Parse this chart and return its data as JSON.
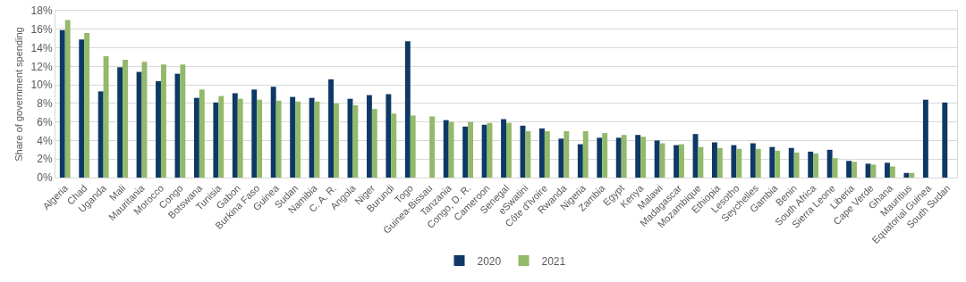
{
  "chart_data": {
    "type": "bar",
    "ylabel": "Share of government spending",
    "categories": [
      "Algeria",
      "Chad",
      "Uganda",
      "Mali",
      "Mauritania",
      "Morocco",
      "Congo",
      "Botswana",
      "Tunisia",
      "Gabon",
      "Burkina Faso",
      "Guinea",
      "Sudan",
      "Namibia",
      "C. A. R.",
      "Angola",
      "Niger",
      "Burundi",
      "Togo",
      "Guinea-Bissau",
      "Tanzania",
      "Congo, D. R.",
      "Cameroon",
      "Senegal",
      "eSwatini",
      "Côte d'Ivoire",
      "Rwanda",
      "Nigeria",
      "Zambia",
      "Egypt",
      "Kenya",
      "Malawi",
      "Madagascar",
      "Mozambique",
      "Ethiopia",
      "Lesotho",
      "Seychelles",
      "Gambia",
      "Benin",
      "South Africa",
      "Sierra Leone",
      "Liberia",
      "Cape Verde",
      "Ghana",
      "Mauritius",
      "Equatorial Guinea",
      "South Sudan"
    ],
    "series": [
      {
        "name": "2020",
        "color": "#0e3966",
        "values": [
          15.9,
          14.9,
          9.3,
          11.9,
          11.4,
          10.4,
          11.2,
          8.6,
          8.1,
          9.1,
          9.5,
          9.8,
          8.7,
          8.6,
          10.6,
          8.5,
          8.9,
          9.0,
          14.7,
          null,
          6.2,
          5.5,
          5.7,
          6.3,
          5.6,
          5.3,
          4.2,
          3.6,
          4.3,
          4.3,
          4.6,
          4.0,
          3.5,
          4.7,
          3.8,
          3.5,
          3.7,
          3.3,
          3.2,
          2.8,
          3.0,
          1.8,
          1.5,
          1.6,
          0.5,
          8.4,
          8.1
        ]
      },
      {
        "name": "2021",
        "color": "#93b96b",
        "values": [
          17.0,
          15.6,
          13.1,
          12.7,
          12.5,
          12.2,
          12.2,
          9.5,
          8.8,
          8.5,
          8.4,
          8.3,
          8.2,
          8.2,
          8.0,
          7.8,
          7.4,
          6.9,
          6.7,
          6.6,
          6.0,
          6.0,
          5.9,
          5.9,
          5.0,
          5.0,
          5.0,
          5.0,
          4.8,
          4.6,
          4.4,
          3.7,
          3.6,
          3.3,
          3.2,
          3.1,
          3.1,
          2.9,
          2.7,
          2.6,
          2.1,
          1.7,
          1.4,
          1.2,
          0.5,
          null,
          null
        ]
      }
    ],
    "ylim": [
      0,
      18
    ],
    "yticks": [
      {
        "value": 0,
        "label": "0%"
      },
      {
        "value": 2,
        "label": "2%"
      },
      {
        "value": 4,
        "label": "4%"
      },
      {
        "value": 6,
        "label": "6%"
      },
      {
        "value": 8,
        "label": "8%"
      },
      {
        "value": 10,
        "label": "10%"
      },
      {
        "value": 12,
        "label": "12%"
      },
      {
        "value": 14,
        "label": "14%"
      },
      {
        "value": 16,
        "label": "16%"
      },
      {
        "value": 18,
        "label": "18%"
      }
    ],
    "grid": "y",
    "legend": "bottom"
  }
}
